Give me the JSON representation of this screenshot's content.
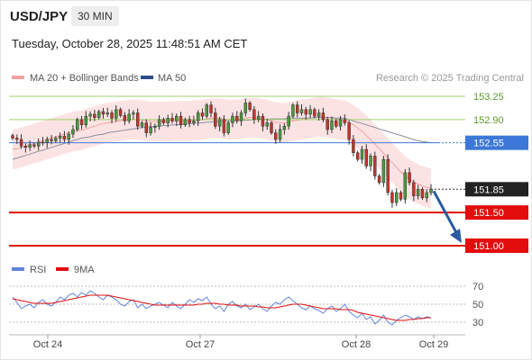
{
  "header": {
    "symbol": "USD/JPY",
    "timeframe": "30 MIN",
    "timestamp": "Tuesday, October 28, 2025 11:48:51 AM CET"
  },
  "legend": {
    "bb_label": "MA 20 + Bollinger Bands",
    "ma50_label": "MA 50",
    "credit": "Research © 2025 Trading Central",
    "bb_color": "#f4a0a0",
    "ma50_color": "#2c4d8a"
  },
  "chart_data": [
    {
      "type": "candlestick",
      "ylim": [
        150.9,
        153.35
      ],
      "x_labels": [
        "Oct 24",
        "Oct 27",
        "Oct 28",
        "Oct 29"
      ],
      "levels": [
        {
          "value": 153.25,
          "label": "153.25",
          "kind": "resistance",
          "color": "#9ed36a"
        },
        {
          "value": 152.9,
          "label": "152.90",
          "kind": "resistance",
          "color": "#9ed36a"
        },
        {
          "value": 152.55,
          "label": "152.55",
          "kind": "pivot",
          "color": "#3b78d8"
        },
        {
          "value": 151.85,
          "label": "151.85",
          "kind": "last",
          "color": "#222222"
        },
        {
          "value": 151.5,
          "label": "151.50",
          "kind": "target",
          "color": "#e30d0d"
        },
        {
          "value": 151.0,
          "label": "151.00",
          "kind": "target",
          "color": "#e30d0d"
        }
      ],
      "closes": [
        152.62,
        152.6,
        152.5,
        152.48,
        152.52,
        152.5,
        152.56,
        152.55,
        152.6,
        152.58,
        152.62,
        152.65,
        152.6,
        152.68,
        152.75,
        152.9,
        152.82,
        152.95,
        152.98,
        152.93,
        153.02,
        152.98,
        153.0,
        152.92,
        153.05,
        152.96,
        152.88,
        152.98,
        153.0,
        152.8,
        152.85,
        152.7,
        152.78,
        152.8,
        152.9,
        152.85,
        152.92,
        152.88,
        152.95,
        152.82,
        152.9,
        152.85,
        152.88,
        153.0,
        152.95,
        153.12,
        153.0,
        152.8,
        152.9,
        152.7,
        152.85,
        152.95,
        152.88,
        153.0,
        153.15,
        153.05,
        152.9,
        152.95,
        152.8,
        152.85,
        152.7,
        152.6,
        152.75,
        152.8,
        152.95,
        153.12,
        153.0,
        153.05,
        152.98,
        153.05,
        152.95,
        153.0,
        152.9,
        152.75,
        152.88,
        152.8,
        152.9,
        152.85,
        152.6,
        152.4,
        152.3,
        152.45,
        152.2,
        152.35,
        152.05,
        151.95,
        152.3,
        151.8,
        151.65,
        151.8,
        151.7,
        152.1,
        151.95,
        151.75,
        151.85,
        151.72,
        151.8,
        151.85
      ],
      "ma20": [
        152.45,
        152.46,
        152.48,
        152.5,
        152.52,
        152.54,
        152.56,
        152.58,
        152.6,
        152.62,
        152.64,
        152.66,
        152.68,
        152.7,
        152.72,
        152.73,
        152.74,
        152.76,
        152.78,
        152.8,
        152.82,
        152.84,
        152.85,
        152.86,
        152.87,
        152.88,
        152.89,
        152.9,
        152.9,
        152.9,
        152.89,
        152.88,
        152.87,
        152.87,
        152.87,
        152.87,
        152.87,
        152.88,
        152.88,
        152.88,
        152.88,
        152.88,
        152.89,
        152.89,
        152.9,
        152.91,
        152.92,
        152.92,
        152.92,
        152.91,
        152.9,
        152.9,
        152.9,
        152.91,
        152.92,
        152.93,
        152.93,
        152.92,
        152.91,
        152.9,
        152.88,
        152.86,
        152.85,
        152.85,
        152.86,
        152.88,
        152.89,
        152.9,
        152.91,
        152.92,
        152.93,
        152.94,
        152.94,
        152.93,
        152.92,
        152.91,
        152.9,
        152.89,
        152.86,
        152.82,
        152.77,
        152.72,
        152.66,
        152.6,
        152.53,
        152.46,
        152.39,
        152.32,
        152.25,
        152.18,
        152.11,
        152.05,
        152.0,
        151.96,
        151.93,
        151.9,
        151.88,
        151.86
      ],
      "ma50": [
        152.3,
        152.32,
        152.34,
        152.36,
        152.38,
        152.4,
        152.42,
        152.44,
        152.46,
        152.48,
        152.5,
        152.52,
        152.54,
        152.56,
        152.58,
        152.6,
        152.62,
        152.63,
        152.64,
        152.66,
        152.67,
        152.68,
        152.7,
        152.71,
        152.72,
        152.73,
        152.74,
        152.75,
        152.76,
        152.77,
        152.78,
        152.79,
        152.79,
        152.8,
        152.8,
        152.81,
        152.81,
        152.82,
        152.82,
        152.83,
        152.83,
        152.84,
        152.84,
        152.85,
        152.85,
        152.86,
        152.86,
        152.87,
        152.87,
        152.87,
        152.88,
        152.88,
        152.88,
        152.89,
        152.89,
        152.89,
        152.9,
        152.9,
        152.9,
        152.9,
        152.91,
        152.91,
        152.91,
        152.91,
        152.92,
        152.92,
        152.92,
        152.92,
        152.92,
        152.92,
        152.93,
        152.93,
        152.93,
        152.93,
        152.93,
        152.92,
        152.92,
        152.92,
        152.9,
        152.88,
        152.86,
        152.84,
        152.82,
        152.8,
        152.78,
        152.76,
        152.74,
        152.72,
        152.7,
        152.68,
        152.66,
        152.64,
        152.62,
        152.6,
        152.58,
        152.57,
        152.56,
        152.55
      ],
      "bb_width": 0.3,
      "forecast_arrow": {
        "from": 151.85,
        "to": 151.0,
        "color": "#2a5aa0"
      }
    },
    {
      "type": "line",
      "ylim": [
        18,
        78
      ],
      "y_ticks": [
        70,
        50,
        30
      ],
      "series": [
        {
          "name": "RSI",
          "color": "#5f86d8",
          "values": [
            58,
            52,
            45,
            48,
            50,
            46,
            52,
            55,
            50,
            48,
            52,
            58,
            55,
            60,
            62,
            58,
            63,
            60,
            65,
            62,
            58,
            55,
            60,
            58,
            55,
            50,
            48,
            53,
            55,
            46,
            50,
            45,
            48,
            50,
            52,
            49,
            46,
            52,
            48,
            45,
            50,
            55,
            52,
            56,
            54,
            58,
            50,
            45,
            48,
            42,
            50,
            53,
            48,
            46,
            50,
            44,
            47,
            50,
            45,
            42,
            48,
            52,
            50,
            55,
            58,
            54,
            50,
            46,
            44,
            48,
            45,
            43,
            40,
            45,
            48,
            42,
            45,
            50,
            42,
            38,
            35,
            40,
            33,
            36,
            28,
            32,
            38,
            30,
            27,
            32,
            35,
            38,
            36,
            33,
            36,
            34,
            36,
            35
          ]
        },
        {
          "name": "9MA",
          "color": "#e30d0d",
          "values": [
            56,
            55,
            54,
            53,
            52,
            51,
            51,
            51,
            51,
            51,
            52,
            53,
            54,
            55,
            56,
            57,
            58,
            59,
            60,
            60,
            60,
            60,
            60,
            59,
            58,
            57,
            56,
            55,
            54,
            53,
            52,
            51,
            50,
            49,
            49,
            49,
            49,
            49,
            49,
            49,
            49,
            49,
            49,
            50,
            50,
            51,
            51,
            51,
            50,
            50,
            49,
            49,
            49,
            48,
            48,
            48,
            48,
            47,
            47,
            46,
            46,
            46,
            47,
            48,
            49,
            50,
            50,
            50,
            49,
            48,
            47,
            46,
            45,
            45,
            45,
            45,
            44,
            44,
            44,
            43,
            41,
            40,
            39,
            38,
            37,
            36,
            35,
            34,
            33,
            32,
            32,
            32,
            33,
            33,
            34,
            34,
            35,
            35
          ]
        }
      ]
    }
  ]
}
